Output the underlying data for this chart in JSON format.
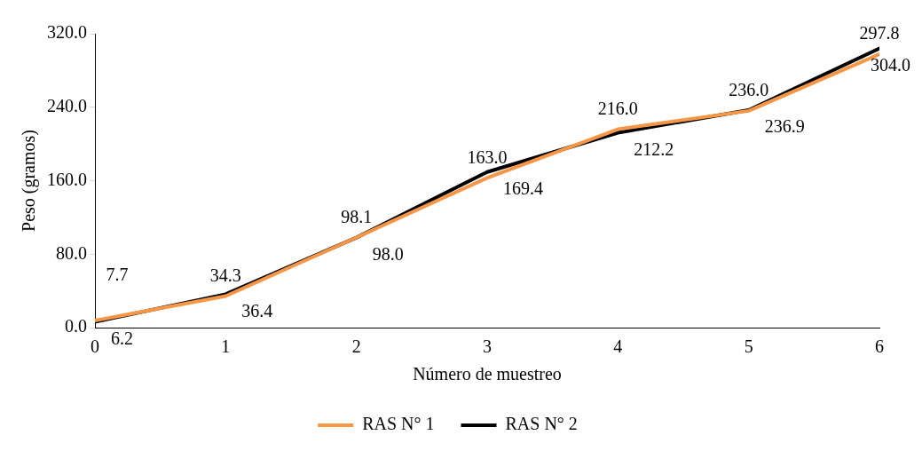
{
  "chart_data": {
    "type": "line",
    "xlabel": "Número de muestreo",
    "ylabel": "Peso (gramos)",
    "x": [
      0,
      1,
      2,
      3,
      4,
      5,
      6
    ],
    "series": [
      {
        "name": "RAS N° 1",
        "color": "#f79646",
        "values": [
          7.7,
          34.3,
          98.1,
          163.0,
          216.0,
          236.0,
          297.8
        ],
        "value_labels": [
          "7.7",
          "34.3",
          "98.1",
          "163.0",
          "216.0",
          "236.0",
          "297.8"
        ]
      },
      {
        "name": "RAS N° 2",
        "color": "#000000",
        "values": [
          6.2,
          36.4,
          98.0,
          169.4,
          212.2,
          236.9,
          304.0
        ],
        "value_labels": [
          "6.2",
          "36.4",
          "98.0",
          "169.4",
          "212.2",
          "236.9",
          "304.0"
        ]
      }
    ],
    "xlim": [
      0,
      6
    ],
    "xticks": [
      0,
      1,
      2,
      3,
      4,
      5,
      6
    ],
    "ylim": [
      0,
      320
    ],
    "yticks": [
      {
        "value": 0,
        "label": "0.0"
      },
      {
        "value": 80,
        "label": "80.0"
      },
      {
        "value": 160,
        "label": "160.0"
      },
      {
        "value": 240,
        "label": "240.0"
      },
      {
        "value": 320,
        "label": "320.0"
      }
    ],
    "grid": false,
    "legend": "bottom",
    "marker": "none",
    "line_style": "solid"
  }
}
